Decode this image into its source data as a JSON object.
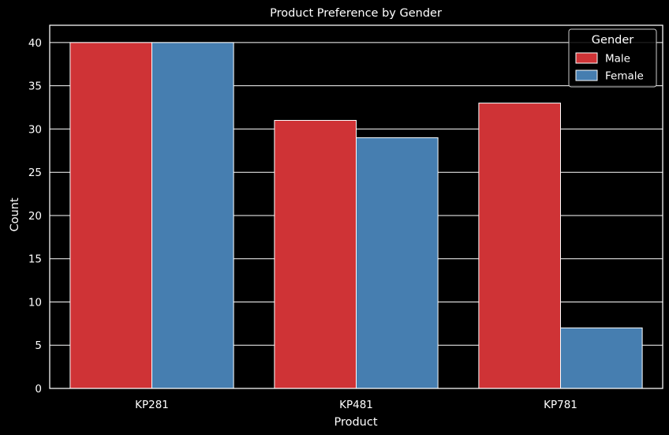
{
  "chart_data": {
    "type": "bar",
    "title": "Product Preference by Gender",
    "xlabel": "Product",
    "ylabel": "Count",
    "categories": [
      "KP281",
      "KP481",
      "KP781"
    ],
    "series": [
      {
        "name": "Male",
        "values": [
          40,
          31,
          33
        ],
        "color": "#cf3336"
      },
      {
        "name": "Female",
        "values": [
          40,
          29,
          7
        ],
        "color": "#467eb0"
      }
    ],
    "ylim": [
      0,
      42
    ],
    "yticks": [
      "0",
      "5",
      "10",
      "15",
      "20",
      "25",
      "30",
      "35",
      "40"
    ],
    "grid": true,
    "legend": {
      "title": "Gender",
      "placement": "top-right"
    },
    "colors": {
      "background": "#000000",
      "foreground": "#ffffff",
      "grid": "#ffffff"
    }
  }
}
